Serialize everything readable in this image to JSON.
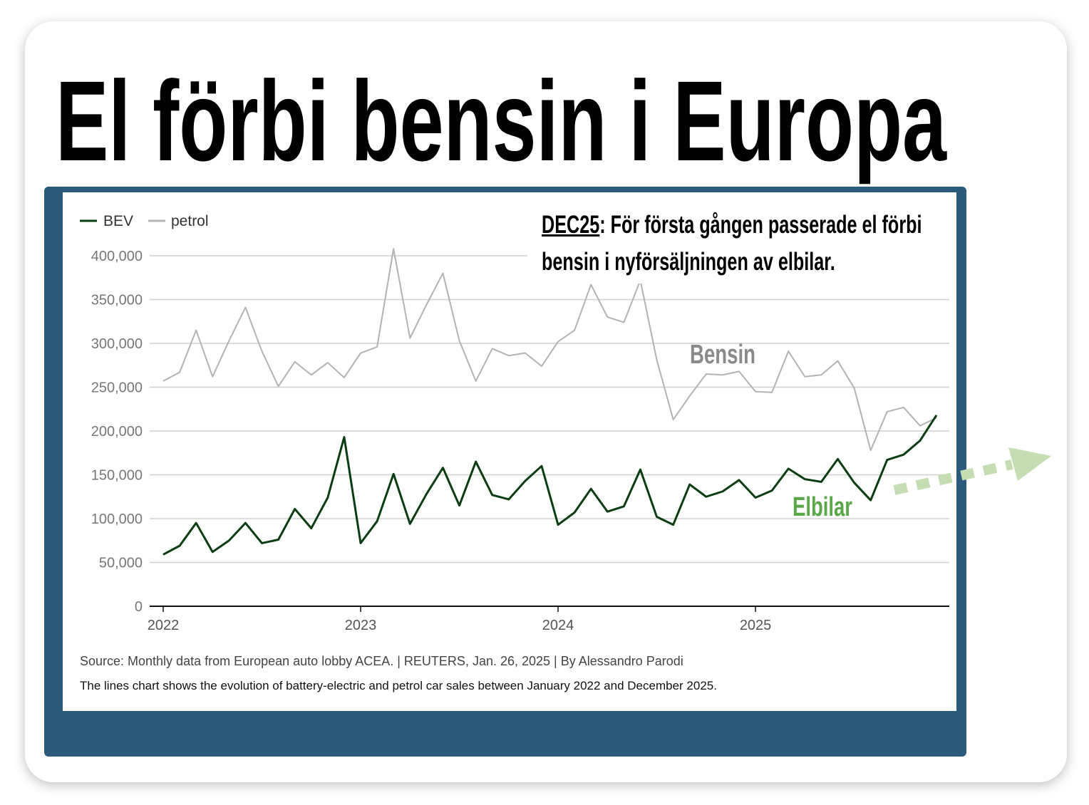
{
  "title": "El förbi bensin i Europa",
  "chart_data": {
    "type": "line",
    "categories": [
      "2022",
      null,
      null,
      null,
      null,
      null,
      null,
      null,
      null,
      null,
      null,
      null,
      "2023",
      null,
      null,
      null,
      null,
      null,
      null,
      null,
      null,
      null,
      null,
      null,
      "2024",
      null,
      null,
      null,
      null,
      null,
      null,
      null,
      null,
      null,
      null,
      null,
      "2025",
      null,
      null,
      null,
      null,
      null,
      null,
      null,
      null,
      null,
      null,
      null
    ],
    "series": [
      {
        "name": "BEV",
        "color": "#0b3d12",
        "values": [
          59000,
          69000,
          95000,
          62000,
          75000,
          95000,
          72000,
          76000,
          111000,
          89000,
          124000,
          193000,
          72000,
          97000,
          151000,
          94000,
          128000,
          158000,
          115000,
          165000,
          127000,
          122000,
          143000,
          160000,
          93000,
          107000,
          134000,
          108000,
          114000,
          156000,
          102000,
          93000,
          139000,
          125000,
          131000,
          144000,
          124000,
          132000,
          157000,
          145000,
          142000,
          168000,
          141000,
          121000,
          167000,
          173000,
          189000,
          218000
        ]
      },
      {
        "name": "petrol",
        "color": "#b3b3b3",
        "values": [
          257000,
          267000,
          315000,
          262000,
          303000,
          341000,
          291000,
          251000,
          279000,
          264000,
          278000,
          261000,
          289000,
          296000,
          408000,
          306000,
          344000,
          380000,
          303000,
          257000,
          294000,
          286000,
          289000,
          274000,
          302000,
          315000,
          367000,
          330000,
          324000,
          372000,
          281000,
          213000,
          240000,
          265000,
          264000,
          268000,
          245000,
          244000,
          291000,
          262000,
          264000,
          280000,
          249000,
          178000,
          222000,
          227000,
          206000,
          215000
        ]
      }
    ],
    "ylim": [
      0,
      400000
    ],
    "yticks": [
      0,
      {
        "value": 50000,
        "label": "50,000"
      },
      {
        "value": 100000,
        "label": "100,000"
      },
      {
        "value": 150000,
        "label": "150,000"
      },
      {
        "value": 200000,
        "label": "200,000"
      },
      {
        "value": 250000,
        "label": "250,000"
      },
      {
        "value": 300000,
        "label": "300,000"
      },
      {
        "value": 350000,
        "label": "350,000"
      },
      {
        "value": 400000,
        "label": "400,000"
      }
    ],
    "grid": true,
    "legend": "top-left",
    "annotation_label": "DEC25",
    "annotation_text": ": För första gången passerade el förbi bensin i nyförsäljningen av elbilar.",
    "petrol_label": "Bensin",
    "bev_label": "Elbilar",
    "source": "Source: Monthly data from European auto lobby ACEA. | REUTERS, Jan. 26, 2025 | By Alessandro Parodi",
    "caption": "The lines chart shows the evolution of battery-electric and petrol car sales between January 2022 and December 2025."
  }
}
